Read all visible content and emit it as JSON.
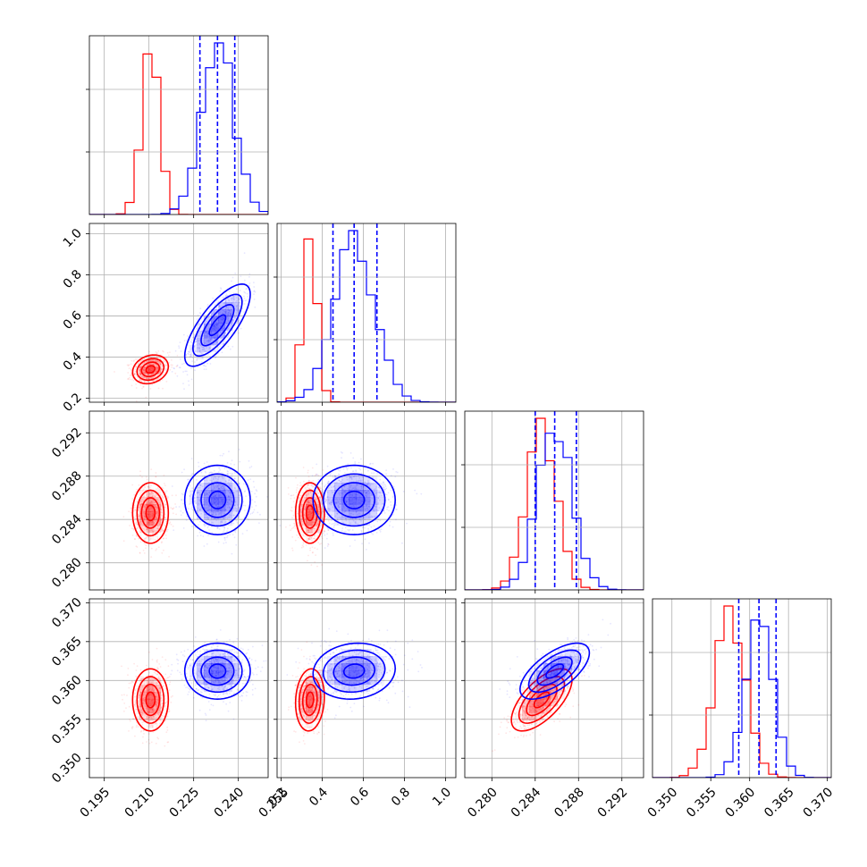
{
  "chart_data": {
    "type": "corner",
    "title": "",
    "grid": true,
    "parameters": [
      {
        "range": [
          0.19,
          0.25
        ],
        "ticks": [
          0.195,
          0.21,
          0.225,
          0.24,
          0.255
        ],
        "tick_labels": [
          "0.195",
          "0.210",
          "0.225",
          "0.240",
          "0.255"
        ]
      },
      {
        "range": [
          0.18,
          1.05
        ],
        "ticks": [
          0.2,
          0.4,
          0.6,
          0.8,
          1.0
        ],
        "tick_labels": [
          "0.2",
          "0.4",
          "0.6",
          "0.8",
          "1.0"
        ]
      },
      {
        "range": [
          0.2775,
          0.294
        ],
        "ticks": [
          0.28,
          0.284,
          0.288,
          0.292
        ],
        "tick_labels": [
          "0.280",
          "0.284",
          "0.288",
          "0.292"
        ]
      },
      {
        "range": [
          0.3475,
          0.3705
        ],
        "ticks": [
          0.35,
          0.355,
          0.36,
          0.365,
          0.37
        ],
        "tick_labels": [
          "0.350",
          "0.355",
          "0.360",
          "0.365",
          "0.370"
        ]
      }
    ],
    "series": [
      {
        "color": "#ff0000",
        "means": [
          0.2105,
          0.34,
          0.2846,
          0.3575
        ],
        "sigmas": [
          0.003,
          0.035,
          0.0014,
          0.002
        ],
        "correlations": [
          [
            0,
            1,
            0.2
          ],
          [
            0,
            2,
            0.0
          ],
          [
            0,
            3,
            0.0
          ],
          [
            1,
            2,
            0.0
          ],
          [
            1,
            3,
            0.1
          ],
          [
            2,
            3,
            0.65
          ]
        ],
        "quantiles": null
      },
      {
        "color": "#0000ff",
        "means": [
          0.233,
          0.555,
          0.2858,
          0.3612
        ],
        "sigmas": [
          0.0055,
          0.1,
          0.0016,
          0.0018
        ],
        "correlations": [
          [
            0,
            1,
            0.75
          ],
          [
            0,
            2,
            0.0
          ],
          [
            0,
            3,
            0.0
          ],
          [
            1,
            2,
            0.0
          ],
          [
            1,
            3,
            0.1
          ],
          [
            2,
            3,
            0.65
          ]
        ],
        "quantiles": [
          [
            0.2271,
            0.233,
            0.2388
          ],
          [
            0.452,
            0.555,
            0.666
          ],
          [
            0.284,
            0.2858,
            0.2878
          ],
          [
            0.3586,
            0.3612,
            0.3634
          ]
        ]
      }
    ]
  }
}
